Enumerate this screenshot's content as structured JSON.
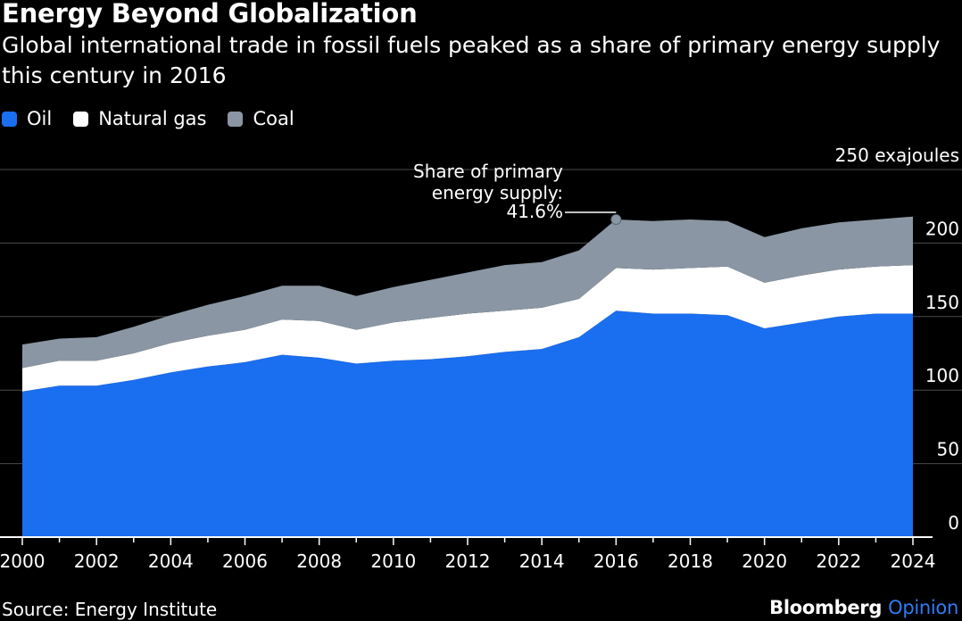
{
  "header": {
    "title": "Energy Beyond Globalization",
    "subtitle": "Global international trade in fossil fuels peaked as a share of primary energy supply this century in 2016"
  },
  "legend": [
    {
      "label": "Oil",
      "color": "#1a6ef0"
    },
    {
      "label": "Natural gas",
      "color": "#ffffff"
    },
    {
      "label": "Coal",
      "color": "#8a96a3"
    }
  ],
  "footer": {
    "source": "Source: Energy Institute",
    "brand_main": "Bloomberg",
    "brand_sub": "Opinion"
  },
  "chart_data": {
    "type": "area",
    "stacked": true,
    "x": [
      2000,
      2001,
      2002,
      2003,
      2004,
      2005,
      2006,
      2007,
      2008,
      2009,
      2010,
      2011,
      2012,
      2013,
      2014,
      2015,
      2016,
      2017,
      2018,
      2019,
      2020,
      2021,
      2022,
      2023,
      2024
    ],
    "x_tick_labels": [
      "2000",
      "2002",
      "2004",
      "2006",
      "2008",
      "2010",
      "2012",
      "2014",
      "2016",
      "2018",
      "2020",
      "2022",
      "2024"
    ],
    "y_tick_labels": [
      "0",
      "50",
      "100",
      "150",
      "200",
      "250 exajoules"
    ],
    "ylim": [
      0,
      250
    ],
    "ylabel": "exajoules",
    "grid": true,
    "legend_position": "top-left",
    "series": [
      {
        "name": "Oil",
        "color": "#1a6ef0",
        "values": [
          99,
          103,
          103,
          107,
          112,
          116,
          119,
          124,
          122,
          118,
          120,
          121,
          123,
          126,
          128,
          136,
          154,
          152,
          152,
          151,
          142,
          146,
          150,
          152,
          152
        ]
      },
      {
        "name": "Natural gas",
        "color": "#ffffff",
        "values": [
          16,
          17,
          17,
          18,
          20,
          21,
          22,
          24,
          25,
          23,
          26,
          28,
          29,
          28,
          28,
          26,
          29,
          30,
          31,
          33,
          31,
          32,
          32,
          32,
          33
        ]
      },
      {
        "name": "Coal",
        "color": "#8a96a3",
        "values": [
          16,
          15,
          16,
          18,
          19,
          21,
          23,
          23,
          24,
          23,
          24,
          26,
          28,
          31,
          31,
          33,
          33,
          33,
          33,
          31,
          31,
          32,
          32,
          32,
          33
        ]
      }
    ],
    "annotation": {
      "text_lines": [
        "Share of primary",
        "energy supply:",
        "41.6%"
      ],
      "x": 2016,
      "y": 216
    }
  }
}
